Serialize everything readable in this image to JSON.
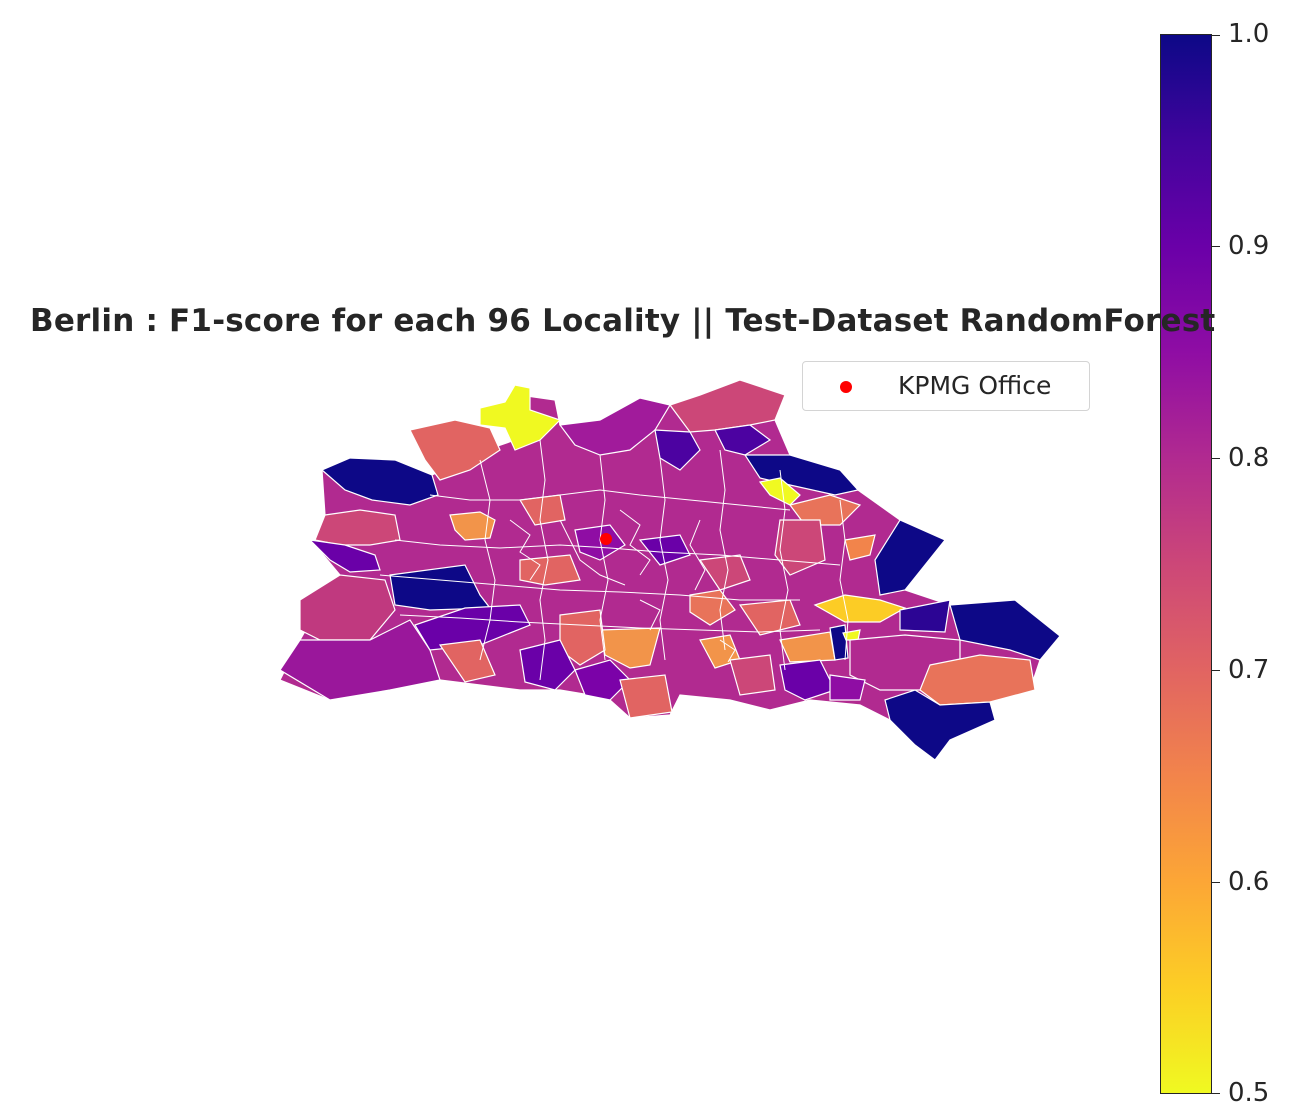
{
  "title": "Berlin : F1-score for each 96 Locality || Test-Dataset RandomForest",
  "legend": {
    "label": "KPMG Office",
    "marker_color": "#ff0000"
  },
  "colorbar": {
    "colormap": "plasma_r",
    "min": 0.5,
    "max": 1.0,
    "ticks": [
      "1.0",
      "0.9",
      "0.8",
      "0.7",
      "0.6",
      "0.5"
    ],
    "stops": [
      "#0d0887",
      "#41049d",
      "#6a00a8",
      "#8f0da4",
      "#b12a90",
      "#cc4778",
      "#e16462",
      "#f2844b",
      "#fca636",
      "#fcce25",
      "#f0f921"
    ]
  },
  "map": {
    "boundary_color": "#ffffff",
    "marker": "KPMG Office"
  }
}
